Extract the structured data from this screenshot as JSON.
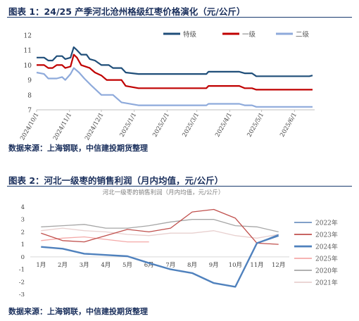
{
  "figure1": {
    "heading": "图表 1：24/25 产季河北沧州格级红枣价格演化（元/公斤）",
    "source": "数据来源：上海钢联，中信建投期货整理"
  },
  "figure2": {
    "heading": "图表 2：河北一级枣的销售利润（月内均值，元/公斤）",
    "source": "数据来源：上海钢联，中信建投期货整理"
  },
  "chart_data": [
    {
      "type": "line",
      "title": "",
      "xlabel": "",
      "ylabel": "",
      "ylim": [
        7,
        12
      ],
      "yticks": [
        7,
        8,
        9,
        10,
        11,
        12
      ],
      "xlim": [
        "2024-10-01",
        "2025-06-20"
      ],
      "xticks": [
        "2024/10/1",
        "2024/11/1",
        "2024/12/1",
        "2025/1/1",
        "2025/2/1",
        "2025/3/1",
        "2025/4/1",
        "2025/5/1",
        "2025/6/1"
      ],
      "grid": false,
      "legend_position": "top-right",
      "series": [
        {
          "name": "特级",
          "color": "#1f4e79",
          "points": [
            [
              "2024-10-01",
              10.5
            ],
            [
              "2024-10-08",
              10.5
            ],
            [
              "2024-10-12",
              10.3
            ],
            [
              "2024-10-16",
              10.3
            ],
            [
              "2024-10-20",
              10.6
            ],
            [
              "2024-10-25",
              10.6
            ],
            [
              "2024-10-28",
              10.4
            ],
            [
              "2024-11-02",
              10.5
            ],
            [
              "2024-11-05",
              11.2
            ],
            [
              "2024-11-08",
              11.0
            ],
            [
              "2024-11-12",
              10.7
            ],
            [
              "2024-11-17",
              10.7
            ],
            [
              "2024-11-20",
              10.4
            ],
            [
              "2024-11-25",
              10.3
            ],
            [
              "2024-12-01",
              10.0
            ],
            [
              "2024-12-08",
              10.0
            ],
            [
              "2024-12-12",
              9.8
            ],
            [
              "2024-12-20",
              9.8
            ],
            [
              "2024-12-24",
              9.5
            ],
            [
              "2025-01-05",
              9.4
            ],
            [
              "2025-02-15",
              9.4
            ],
            [
              "2025-03-10",
              9.4
            ],
            [
              "2025-03-12",
              9.55
            ],
            [
              "2025-04-10",
              9.55
            ],
            [
              "2025-04-15",
              9.45
            ],
            [
              "2025-04-22",
              9.45
            ],
            [
              "2025-04-26",
              9.25
            ],
            [
              "2025-06-15",
              9.25
            ],
            [
              "2025-06-18",
              9.3
            ]
          ]
        },
        {
          "name": "一级",
          "color": "#c00000",
          "points": [
            [
              "2024-10-01",
              10.0
            ],
            [
              "2024-10-08",
              10.0
            ],
            [
              "2024-10-12",
              9.8
            ],
            [
              "2024-10-16",
              9.8
            ],
            [
              "2024-10-20",
              10.0
            ],
            [
              "2024-10-25",
              10.0
            ],
            [
              "2024-10-28",
              9.8
            ],
            [
              "2024-11-02",
              9.9
            ],
            [
              "2024-11-05",
              10.7
            ],
            [
              "2024-11-08",
              10.5
            ],
            [
              "2024-11-12",
              10.0
            ],
            [
              "2024-11-20",
              9.8
            ],
            [
              "2024-11-25",
              9.5
            ],
            [
              "2024-12-01",
              9.3
            ],
            [
              "2024-12-06",
              9.0
            ],
            [
              "2024-12-20",
              9.0
            ],
            [
              "2024-12-24",
              8.6
            ],
            [
              "2025-01-05",
              8.45
            ],
            [
              "2025-03-10",
              8.45
            ],
            [
              "2025-03-12",
              8.6
            ],
            [
              "2025-04-10",
              8.6
            ],
            [
              "2025-04-15",
              8.45
            ],
            [
              "2025-04-22",
              8.45
            ],
            [
              "2025-04-26",
              8.35
            ],
            [
              "2025-06-18",
              8.35
            ]
          ]
        },
        {
          "name": "二级",
          "color": "#8eaadb",
          "points": [
            [
              "2024-10-01",
              9.5
            ],
            [
              "2024-10-08",
              9.4
            ],
            [
              "2024-10-12",
              9.1
            ],
            [
              "2024-10-20",
              9.1
            ],
            [
              "2024-10-25",
              9.2
            ],
            [
              "2024-10-28",
              9.0
            ],
            [
              "2024-11-02",
              9.4
            ],
            [
              "2024-11-05",
              9.8
            ],
            [
              "2024-11-10",
              9.5
            ],
            [
              "2024-11-15",
              9.1
            ],
            [
              "2024-11-22",
              8.6
            ],
            [
              "2024-12-01",
              8.0
            ],
            [
              "2024-12-12",
              8.0
            ],
            [
              "2024-12-20",
              7.5
            ],
            [
              "2025-01-05",
              7.3
            ],
            [
              "2025-03-10",
              7.3
            ],
            [
              "2025-03-12",
              7.4
            ],
            [
              "2025-04-10",
              7.4
            ],
            [
              "2025-04-15",
              7.3
            ],
            [
              "2025-04-22",
              7.3
            ],
            [
              "2025-04-26",
              7.2
            ],
            [
              "2025-06-18",
              7.2
            ]
          ]
        }
      ]
    },
    {
      "type": "line",
      "title": "河北一级枣的销售利润（月内均值，元/公斤）",
      "xlabel": "",
      "ylabel": "",
      "ylim": [
        -3,
        4
      ],
      "yticks": [
        -3,
        -2,
        -1,
        0,
        1,
        2,
        3,
        4
      ],
      "categories": [
        "1月",
        "2月",
        "3月",
        "4月",
        "5月",
        "6月",
        "7月",
        "8月",
        "9月",
        "10月",
        "11月",
        "12月"
      ],
      "grid": false,
      "legend_position": "right",
      "series": [
        {
          "name": "2022年",
          "color": "#6f93c1",
          "width": 1.3,
          "values": [
            1.3,
            null,
            null,
            null,
            null,
            null,
            null,
            null,
            null,
            null,
            1.1,
            1.8
          ]
        },
        {
          "name": "2023年",
          "color": "#c0504d",
          "width": 1.3,
          "values": [
            1.9,
            1.3,
            1.2,
            1.7,
            2.2,
            2.0,
            2.3,
            3.6,
            3.8,
            3.1,
            1.1,
            1.0
          ]
        },
        {
          "name": "2024年",
          "color": "#4f81bd",
          "width": 2.4,
          "values": [
            0.8,
            0.65,
            0.25,
            0.15,
            0.05,
            -0.5,
            -1.0,
            -1.3,
            -2.1,
            -2.4,
            1.1,
            1.7
          ]
        },
        {
          "name": "2025年",
          "color": "#f4a9a8",
          "width": 1.3,
          "values": [
            1.3,
            1.5,
            1.6,
            1.4,
            1.2,
            1.2,
            null,
            null,
            null,
            null,
            null,
            null
          ]
        },
        {
          "name": "2020年",
          "color": "#a6a6a6",
          "width": 1.3,
          "values": [
            2.4,
            2.5,
            2.6,
            2.3,
            2.3,
            2.5,
            2.8,
            3.0,
            3.0,
            2.5,
            2.4,
            2.0
          ]
        },
        {
          "name": "2021年",
          "color": "#e8d0cf",
          "width": 1.3,
          "values": [
            2.1,
            2.3,
            2.1,
            2.0,
            1.8,
            1.7,
            1.9,
            1.9,
            2.1,
            1.7,
            1.5,
            1.8
          ]
        }
      ]
    }
  ]
}
